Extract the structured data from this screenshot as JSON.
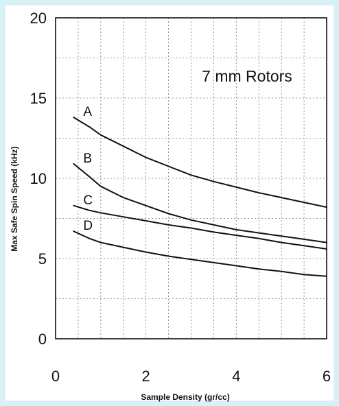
{
  "chart_data": {
    "type": "line",
    "title": "",
    "annotation": "7 mm Rotors",
    "xlabel": "Sample Density (gr/cc)",
    "ylabel": "Max Safe Spin Speed (kHz)",
    "xlim": [
      0,
      6
    ],
    "ylim": [
      0,
      20
    ],
    "x_ticks": [
      0,
      2,
      4,
      6
    ],
    "y_ticks": [
      0,
      5,
      10,
      15,
      20
    ],
    "grid": true,
    "series": [
      {
        "name": "A",
        "x": [
          0.4,
          0.75,
          1,
          1.5,
          2,
          2.5,
          3,
          3.5,
          4,
          4.5,
          5,
          5.5,
          6
        ],
        "y": [
          13.8,
          13.2,
          12.7,
          12.0,
          11.3,
          10.75,
          10.2,
          9.8,
          9.45,
          9.1,
          8.8,
          8.5,
          8.2
        ]
      },
      {
        "name": "B",
        "x": [
          0.4,
          0.75,
          1,
          1.5,
          2,
          2.5,
          3,
          3.5,
          4,
          4.5,
          5,
          5.5,
          6
        ],
        "y": [
          10.9,
          10.1,
          9.5,
          8.8,
          8.3,
          7.8,
          7.4,
          7.1,
          6.8,
          6.6,
          6.4,
          6.2,
          6.0
        ]
      },
      {
        "name": "C",
        "x": [
          0.4,
          0.75,
          1,
          1.5,
          2,
          2.5,
          3,
          3.5,
          4,
          4.5,
          5,
          5.5,
          6
        ],
        "y": [
          8.3,
          8.0,
          7.85,
          7.6,
          7.35,
          7.1,
          6.9,
          6.65,
          6.45,
          6.25,
          6.0,
          5.8,
          5.6
        ]
      },
      {
        "name": "D",
        "x": [
          0.4,
          0.75,
          1,
          1.5,
          2,
          2.5,
          3,
          3.5,
          4,
          4.5,
          5,
          5.5,
          6
        ],
        "y": [
          6.7,
          6.25,
          6.0,
          5.7,
          5.4,
          5.15,
          4.95,
          4.75,
          4.55,
          4.35,
          4.2,
          4.0,
          3.9
        ]
      }
    ]
  }
}
